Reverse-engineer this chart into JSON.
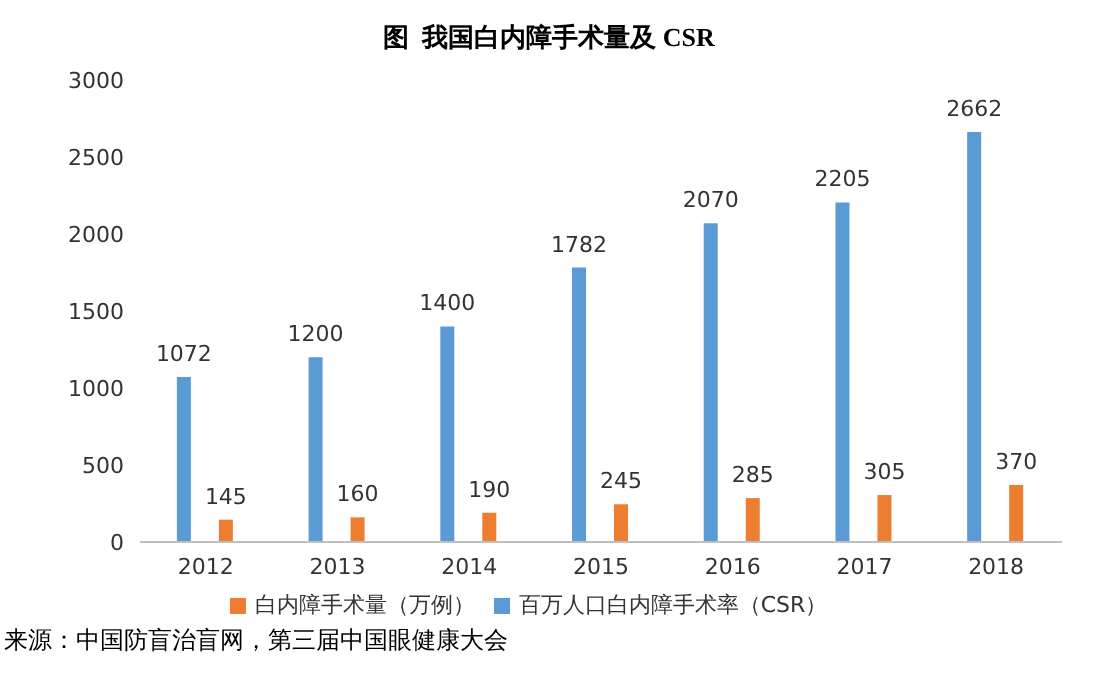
{
  "chart_data": {
    "type": "bar",
    "title": "图  我国白内障手术量及 CSR",
    "categories": [
      "2012",
      "2013",
      "2014",
      "2015",
      "2016",
      "2017",
      "2018"
    ],
    "series": [
      {
        "name": "百万人口白内障手术率（CSR）",
        "color": "#5b9bd5",
        "values": [
          1072,
          1200,
          1400,
          1782,
          2070,
          2205,
          2662
        ]
      },
      {
        "name": "白内障手术量（万例）",
        "color": "#ed7d31",
        "values": [
          145,
          160,
          190,
          245,
          285,
          305,
          370
        ]
      }
    ],
    "ylim": [
      0,
      3000
    ],
    "yticks": [
      0,
      500,
      1000,
      1500,
      2000,
      2500,
      3000
    ],
    "grid": false,
    "legend": "bottom",
    "data_labels": true,
    "annotations": [
      "来源：中国防盲治盲网，第三届中国眼健康大会"
    ]
  }
}
